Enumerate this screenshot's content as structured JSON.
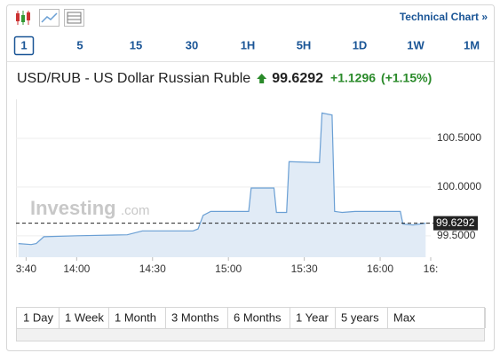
{
  "toolbar": {
    "link": "Technical Chart »",
    "intervals": [
      "1",
      "5",
      "15",
      "30",
      "1H",
      "5H",
      "1D",
      "1W",
      "1M"
    ]
  },
  "header": {
    "title": "USD/RUB - US Dollar Russian Ruble",
    "change": "+1.1296",
    "change_pct": "(+1.15%)"
  },
  "watermark": {
    "brand": "Investing",
    "suffix": ".com"
  },
  "chart_data": {
    "type": "area",
    "x": [
      "13:37",
      "13:42",
      "13:44",
      "13:47",
      "14:00",
      "14:20",
      "14:26",
      "14:46",
      "14:48",
      "14:50",
      "14:53",
      "15:08",
      "15:09",
      "15:18",
      "15:19",
      "15:23",
      "15:24",
      "15:36",
      "15:37",
      "15:41",
      "15:42",
      "15:45",
      "15:50",
      "16:08",
      "16:09",
      "16:13",
      "16:18"
    ],
    "values": [
      99.42,
      99.41,
      99.42,
      99.49,
      99.5,
      99.51,
      99.55,
      99.55,
      99.57,
      99.71,
      99.75,
      99.75,
      99.99,
      99.99,
      99.74,
      99.74,
      100.26,
      100.25,
      100.76,
      100.74,
      99.75,
      99.74,
      99.75,
      99.75,
      99.62,
      99.61,
      99.6292
    ],
    "current": 99.6292,
    "color": "#6a9fd4",
    "xlim": [
      "13:36",
      "16:20"
    ],
    "xticks": [
      {
        "value": "13:40",
        "label": "3:40"
      },
      "14:00",
      "14:30",
      "15:00",
      "15:30",
      "16:00",
      {
        "value": "16:20",
        "label": "16:"
      }
    ],
    "ylim": [
      99.28,
      100.9
    ],
    "yticks": [
      {
        "value": 99.5,
        "label": "99.5000"
      },
      {
        "value": 100,
        "label": "100.0000"
      },
      {
        "value": 100.5,
        "label": "100.5000"
      }
    ],
    "grid": true
  },
  "ranges": [
    "1 Day",
    "1 Week",
    "1 Month",
    "3 Months",
    "6 Months",
    "1 Year",
    "5 years",
    "Max"
  ]
}
